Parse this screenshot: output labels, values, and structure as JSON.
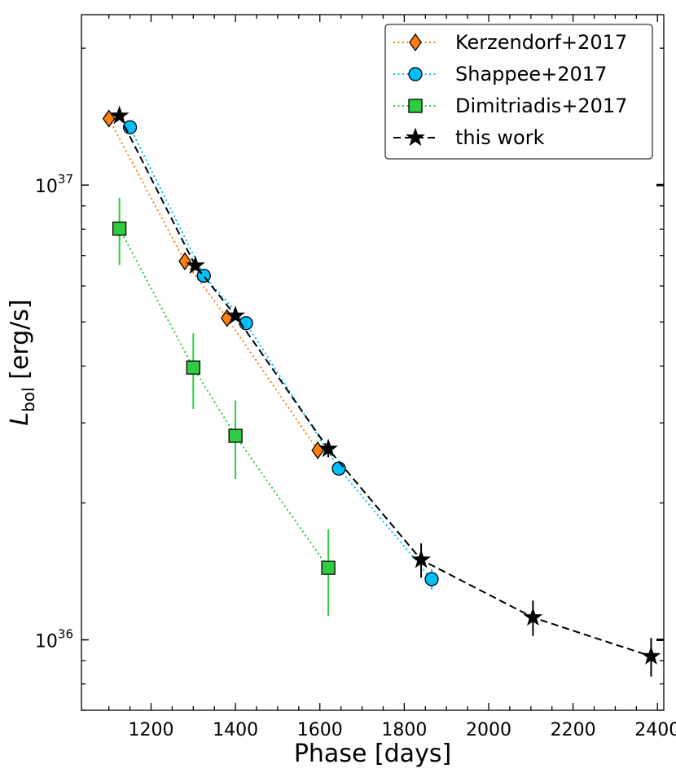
{
  "chart_data": {
    "type": "scatter",
    "title": "",
    "xlabel": "Phase [days]",
    "ylabel": {
      "base": "L",
      "sub": "bol",
      "unit": " [erg/s]"
    },
    "xlim": [
      1035,
      2415
    ],
    "ylim": [
      7e+35,
      2.37e+37
    ],
    "yscale": "log",
    "x_ticks": [
      1200,
      1400,
      1600,
      1800,
      2000,
      2200,
      2400
    ],
    "x_tick_labels": [
      "1200",
      "1400",
      "1600",
      "1800",
      "2000",
      "2200",
      "2400"
    ],
    "y_ticks": [
      {
        "value": 1e+36,
        "base": "10",
        "exp": "36"
      },
      {
        "value": 1e+37,
        "base": "10",
        "exp": "37"
      }
    ],
    "legend_position": "top-right",
    "series": [
      {
        "name": "Kerzendorf+2017",
        "color": "#ff7f0e",
        "marker": "diamond",
        "linestyle": "dotted",
        "x": [
          1100,
          1280,
          1380,
          1595
        ],
        "y": [
          1.4e+37,
          6.8e+36,
          5.1e+36,
          2.61e+36
        ],
        "yerr": [
          0,
          0,
          0,
          0
        ]
      },
      {
        "name": "Shappee+2017",
        "color": "#00bfff",
        "marker": "circle",
        "linestyle": "dotted",
        "x": [
          1150,
          1325,
          1425,
          1645,
          1865
        ],
        "y": [
          1.34e+37,
          6.32e+36,
          4.97e+36,
          2.38e+36,
          1.36e+36
        ],
        "yerr": [
          0,
          0,
          0,
          0,
          7e+34
        ]
      },
      {
        "name": "Dimitriadis+2017",
        "color": "#2ecc40",
        "marker": "square",
        "linestyle": "dotted",
        "x": [
          1125,
          1300,
          1400,
          1620
        ],
        "y": [
          8.02e+36,
          3.97e+36,
          2.81e+36,
          1.44e+36
        ],
        "yerr": [
          1.35e+36,
          7.5e+35,
          5.5e+35,
          3.1e+35
        ]
      },
      {
        "name": "this work",
        "color": "#000000",
        "marker": "star",
        "linestyle": "dashed",
        "x": [
          1125,
          1305,
          1400,
          1620,
          1840,
          2105,
          2385
        ],
        "y": [
          1.42e+37,
          6.65e+36,
          5.16e+36,
          2.63e+36,
          1.5e+36,
          1.12e+36,
          9.2e+35
        ],
        "yerr": [
          0,
          0,
          0,
          1.1e+35,
          1.3e+35,
          1e+35,
          9e+34
        ]
      }
    ]
  }
}
